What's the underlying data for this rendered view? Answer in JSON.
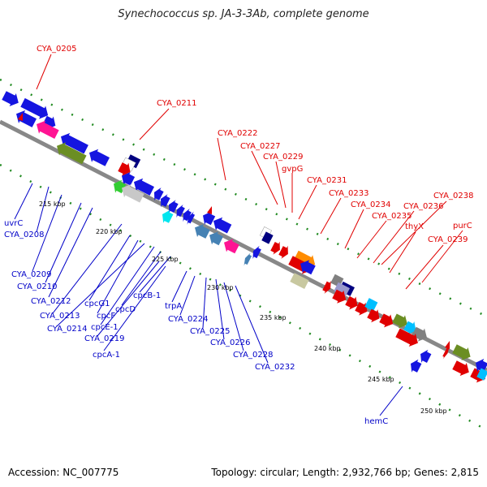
{
  "title": "Synechococcus sp. JA-3-3Ab, complete genome",
  "accession": "Accession: NC_007775",
  "summary": "Topology: circular; Length: 2,932,766 bp; Genes: 2,815",
  "colors": {
    "forward_label": "#e00000",
    "reverse_label": "#0000c8",
    "backbone": "#888888",
    "gc_dots": "#228b22"
  },
  "kbp_ticks": [
    {
      "label": "215 kbp"
    },
    {
      "label": "220 kbp"
    },
    {
      "label": "225 kbp"
    },
    {
      "label": "230 kbp"
    },
    {
      "label": "235 kbp"
    },
    {
      "label": "240 kbp"
    },
    {
      "label": "245 kbp"
    },
    {
      "label": "250 kbp"
    }
  ],
  "forward_labels": [
    "CYA_0205",
    "CYA_0211",
    "CYA_0222",
    "CYA_0227",
    "CYA_0229",
    "gvpG",
    "CYA_0231",
    "CYA_0233",
    "CYA_0234",
    "CYA_0235",
    "CYA_0236",
    "CYA_0238",
    "thyX",
    "purC",
    "CYA_0239"
  ],
  "reverse_labels": [
    "uvrC",
    "CYA_0208",
    "CYA_0209",
    "CYA_0210",
    "CYA_0212",
    "cpcG1",
    "CYA_0213",
    "cpcF",
    "CYA_0214",
    "cpcE-1",
    "cpcD",
    "cpcB-1",
    "CYA_0219",
    "cpcA-1",
    "trpA",
    "CYA_0224",
    "CYA_0225",
    "CYA_0226",
    "CYA_0228",
    "CYA_0232",
    "hemC"
  ]
}
